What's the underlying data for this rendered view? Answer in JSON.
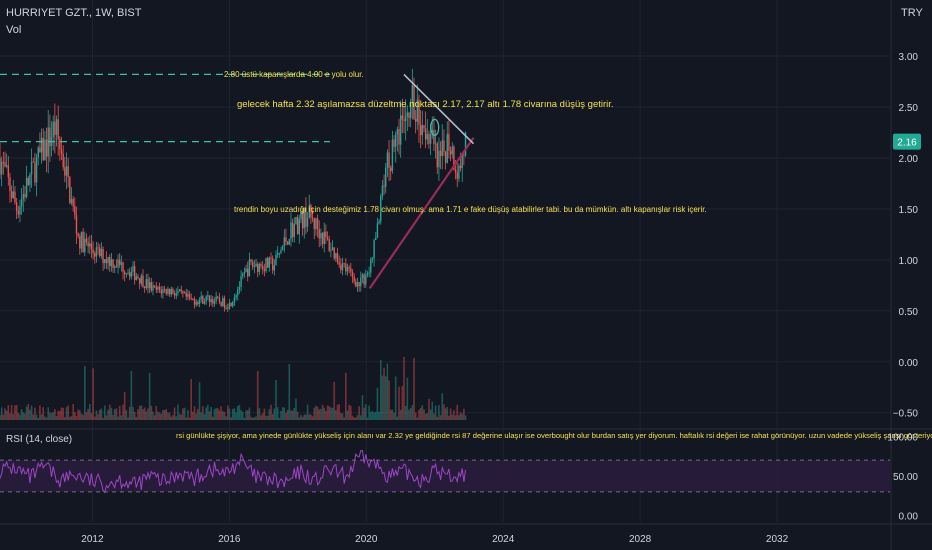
{
  "header": {
    "symbol": "HURRIYET GZT., 1W, BIST",
    "volume_label": "Vol",
    "currency": "TRY"
  },
  "price_badge": "2.16",
  "colors": {
    "background": "#131722",
    "grid": "#1f2433",
    "up": "#26a69a",
    "down": "#ef5350",
    "annotation_text": "#f5e04a",
    "dashed_line": "#3fbfaa",
    "support_line": "#9c2a5a",
    "resistance_line": "#b4bcc8",
    "rsi_line": "#9c46c4",
    "rsi_band": "#2a1c3d",
    "badge": "#22ab94"
  },
  "annotations": [
    "2.80 üstü kapanışlarda 4.00 e yolu olur.",
    "gelecek hafta 2.32 aşılamazsa düzeltme noktası 2.17, 2.17 altı 1.78 civarına düşüş getirir.",
    "trendin boyu uzadığı için desteğimiz 1.78 civarı olmuş. ama 1.71 e fake düşüş atabilirler tabi. bu da mümkün. altı kapanışlar risk içerir.",
    "rsi günlükte şişiyor, ama yinede günlükte yükseliş için alanı var 2.32 ye geldiğinde rsi 87 değerine ulaşır ise overbought olur burdan satış yer diyorum. haftalık rsi değeri ise rahat görünüyor. uzun vadede yükseliş şansı gösteriyor."
  ],
  "chart_data": [
    {
      "type": "line",
      "title": "HURRIYET GZT., 1W, BIST",
      "x_ticks": [
        "2012",
        "2016",
        "2020",
        "2024",
        "2028",
        "2032"
      ],
      "y_ticks": [
        "3.00",
        "2.50",
        "2.00",
        "1.50",
        "1.00",
        "0.50",
        "0.00",
        "−0.50"
      ],
      "ylim": [
        -0.65,
        3.55
      ],
      "xlim": [
        2009.3,
        2035.3
      ],
      "price_path": {
        "x": [
          2009.3,
          2009.8,
          2010.3,
          2010.9,
          2011.2,
          2011.6,
          2012.2,
          2012.8,
          2013.3,
          2013.8,
          2014.3,
          2014.9,
          2015.4,
          2016.0,
          2016.6,
          2017.3,
          2017.8,
          2018.3,
          2018.8,
          2019.3,
          2019.8,
          2020.1,
          2020.4,
          2020.6,
          2020.9,
          2021.2,
          2021.5,
          2021.8,
          2022.1,
          2022.4,
          2022.7,
          2022.9
        ],
        "close": [
          2.0,
          1.5,
          1.9,
          2.3,
          1.9,
          1.2,
          1.05,
          0.95,
          0.85,
          0.7,
          0.7,
          0.6,
          0.62,
          0.56,
          0.95,
          0.95,
          1.3,
          1.45,
          1.2,
          0.95,
          0.75,
          0.9,
          1.45,
          1.95,
          2.15,
          2.6,
          2.45,
          2.3,
          1.9,
          2.2,
          1.85,
          2.16
        ]
      },
      "levels": {
        "resistance_dashed": 2.82,
        "current_dashed": 2.16
      },
      "lines": {
        "support": {
          "x": [
            2020.1,
            2022.9
          ],
          "y": [
            0.72,
            2.16
          ]
        },
        "resistance": {
          "x": [
            2021.1,
            2022.9
          ],
          "y": [
            2.82,
            2.16
          ]
        }
      }
    },
    {
      "type": "line",
      "title": "RSI (14, close)",
      "y_ticks": [
        "100.00",
        "50.00",
        "0.00"
      ],
      "ylim": [
        -8,
        108
      ],
      "bands": [
        30,
        70
      ],
      "series": [
        {
          "name": "RSI (14, close)",
          "values": [
            58,
            60,
            48,
            62,
            45,
            52,
            44,
            40,
            46,
            38,
            50,
            42,
            55,
            46,
            60,
            52,
            70,
            48,
            45,
            40,
            55,
            44,
            58,
            48,
            76,
            64,
            50,
            55,
            46,
            56,
            50,
            52
          ]
        }
      ]
    }
  ]
}
